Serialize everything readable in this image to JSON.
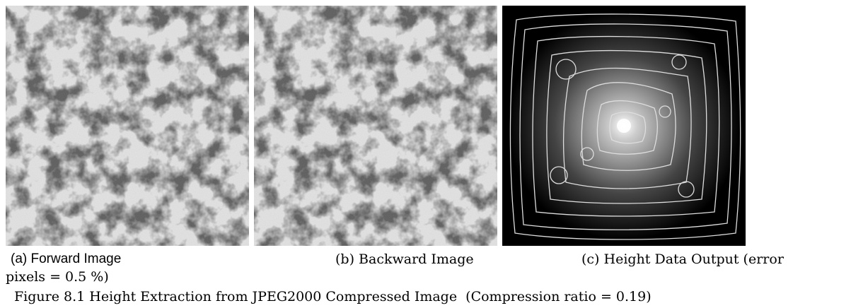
{
  "figure": {
    "panels": [
      {
        "caption": "(a) Forward Image"
      },
      {
        "caption": "(b) Backward Image"
      },
      {
        "caption": "(c) Height Data Output (error",
        "caption_continued": "pixels = 0.5 %)"
      }
    ],
    "title": "Figure 8.1 Height Extraction from JPEG2000 Compressed Image  (Compression ratio = 0.19)"
  }
}
